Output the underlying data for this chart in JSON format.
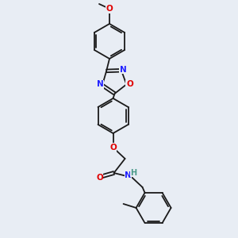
{
  "background_color": "#e8edf4",
  "bond_color": "#1a1a1a",
  "atom_colors": {
    "N": "#2020ff",
    "O": "#e00000",
    "H": "#4a9a8a"
  },
  "figsize": [
    3.0,
    3.0
  ],
  "dpi": 100,
  "scale": 1.0
}
